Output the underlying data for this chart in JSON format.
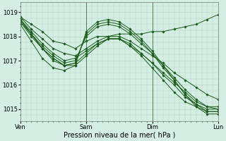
{
  "background_color": "#d4eee4",
  "line_color": "#1a5c1a",
  "grid_color": "#b0d4c0",
  "xlabel": "Pression niveau de la mer( hPa )",
  "ylim": [
    1014.5,
    1019.4
  ],
  "yticks": [
    1015,
    1016,
    1017,
    1018,
    1019
  ],
  "xtick_labels": [
    "Ven",
    "Sam",
    "Dim",
    "Lun"
  ],
  "xtick_positions": [
    0,
    36,
    72,
    108
  ],
  "total_x": 108,
  "series": [
    {
      "points": [
        [
          0,
          1018.8
        ],
        [
          6,
          1018.5
        ],
        [
          12,
          1018.2
        ],
        [
          18,
          1017.8
        ],
        [
          24,
          1017.7
        ],
        [
          30,
          1017.5
        ],
        [
          36,
          1017.8
        ],
        [
          42,
          1018.0
        ],
        [
          48,
          1018.0
        ],
        [
          54,
          1018.1
        ],
        [
          60,
          1018.1
        ],
        [
          66,
          1018.1
        ],
        [
          72,
          1018.2
        ],
        [
          78,
          1018.2
        ],
        [
          84,
          1018.3
        ],
        [
          90,
          1018.4
        ],
        [
          96,
          1018.5
        ],
        [
          102,
          1018.7
        ],
        [
          108,
          1018.9
        ]
      ]
    },
    {
      "points": [
        [
          0,
          1018.8
        ],
        [
          6,
          1018.3
        ],
        [
          12,
          1017.9
        ],
        [
          18,
          1017.5
        ],
        [
          24,
          1017.3
        ],
        [
          30,
          1017.2
        ],
        [
          36,
          1017.5
        ],
        [
          42,
          1017.8
        ],
        [
          48,
          1018.0
        ],
        [
          54,
          1018.0
        ],
        [
          60,
          1017.8
        ],
        [
          66,
          1017.5
        ],
        [
          72,
          1017.2
        ],
        [
          78,
          1016.9
        ],
        [
          84,
          1016.5
        ],
        [
          90,
          1016.2
        ],
        [
          96,
          1015.9
        ],
        [
          102,
          1015.6
        ],
        [
          108,
          1015.4
        ]
      ]
    },
    {
      "points": [
        [
          0,
          1018.7
        ],
        [
          6,
          1018.2
        ],
        [
          12,
          1017.7
        ],
        [
          18,
          1017.3
        ],
        [
          24,
          1017.0
        ],
        [
          30,
          1017.1
        ],
        [
          36,
          1017.4
        ],
        [
          42,
          1017.7
        ],
        [
          48,
          1017.9
        ],
        [
          54,
          1017.9
        ],
        [
          60,
          1017.6
        ],
        [
          66,
          1017.3
        ],
        [
          72,
          1016.9
        ],
        [
          78,
          1016.5
        ],
        [
          84,
          1016.1
        ],
        [
          90,
          1015.7
        ],
        [
          96,
          1015.3
        ],
        [
          102,
          1015.1
        ],
        [
          108,
          1015.0
        ]
      ]
    },
    {
      "points": [
        [
          0,
          1018.7
        ],
        [
          6,
          1018.1
        ],
        [
          12,
          1017.5
        ],
        [
          18,
          1017.1
        ],
        [
          24,
          1016.8
        ],
        [
          30,
          1016.9
        ],
        [
          36,
          1017.3
        ],
        [
          42,
          1017.7
        ],
        [
          48,
          1017.9
        ],
        [
          54,
          1017.9
        ],
        [
          60,
          1017.7
        ],
        [
          66,
          1017.3
        ],
        [
          72,
          1016.9
        ],
        [
          78,
          1016.4
        ],
        [
          84,
          1016.0
        ],
        [
          90,
          1015.5
        ],
        [
          96,
          1015.2
        ],
        [
          102,
          1015.0
        ],
        [
          108,
          1015.0
        ]
      ]
    },
    {
      "points": [
        [
          0,
          1018.7
        ],
        [
          6,
          1018.1
        ],
        [
          12,
          1017.5
        ],
        [
          18,
          1017.0
        ],
        [
          24,
          1016.8
        ],
        [
          30,
          1016.8
        ],
        [
          36,
          1017.2
        ],
        [
          42,
          1017.6
        ],
        [
          48,
          1017.9
        ],
        [
          54,
          1017.9
        ],
        [
          60,
          1017.6
        ],
        [
          66,
          1017.2
        ],
        [
          72,
          1016.7
        ],
        [
          78,
          1016.2
        ],
        [
          84,
          1015.7
        ],
        [
          90,
          1015.3
        ],
        [
          96,
          1015.1
        ],
        [
          102,
          1014.9
        ],
        [
          108,
          1014.9
        ]
      ]
    },
    {
      "points": [
        [
          0,
          1018.6
        ],
        [
          6,
          1018.1
        ],
        [
          12,
          1017.6
        ],
        [
          18,
          1017.2
        ],
        [
          24,
          1016.9
        ],
        [
          30,
          1017.0
        ],
        [
          36,
          1018.0
        ],
        [
          42,
          1018.4
        ],
        [
          48,
          1018.5
        ],
        [
          54,
          1018.4
        ],
        [
          60,
          1018.1
        ],
        [
          66,
          1017.7
        ],
        [
          72,
          1017.3
        ],
        [
          78,
          1016.8
        ],
        [
          84,
          1016.3
        ],
        [
          90,
          1015.8
        ],
        [
          96,
          1015.4
        ],
        [
          102,
          1015.1
        ],
        [
          108,
          1015.1
        ]
      ]
    },
    {
      "points": [
        [
          0,
          1018.6
        ],
        [
          6,
          1018.0
        ],
        [
          12,
          1017.5
        ],
        [
          18,
          1017.1
        ],
        [
          24,
          1016.8
        ],
        [
          30,
          1016.9
        ],
        [
          36,
          1018.1
        ],
        [
          42,
          1018.5
        ],
        [
          48,
          1018.6
        ],
        [
          54,
          1018.5
        ],
        [
          60,
          1018.2
        ],
        [
          66,
          1017.8
        ],
        [
          72,
          1017.3
        ],
        [
          78,
          1016.7
        ],
        [
          84,
          1016.2
        ],
        [
          90,
          1015.6
        ],
        [
          96,
          1015.2
        ],
        [
          102,
          1014.9
        ],
        [
          108,
          1014.9
        ]
      ]
    },
    {
      "points": [
        [
          0,
          1018.5
        ],
        [
          6,
          1017.8
        ],
        [
          12,
          1017.1
        ],
        [
          18,
          1016.7
        ],
        [
          24,
          1016.6
        ],
        [
          30,
          1016.8
        ],
        [
          36,
          1018.2
        ],
        [
          42,
          1018.6
        ],
        [
          48,
          1018.7
        ],
        [
          54,
          1018.6
        ],
        [
          60,
          1018.3
        ],
        [
          66,
          1017.9
        ],
        [
          72,
          1017.4
        ],
        [
          78,
          1016.8
        ],
        [
          84,
          1016.2
        ],
        [
          90,
          1015.6
        ],
        [
          96,
          1015.1
        ],
        [
          102,
          1014.8
        ],
        [
          108,
          1014.8
        ]
      ]
    }
  ],
  "n_grid_x": 12,
  "tick_fontsize": 6,
  "xlabel_fontsize": 7
}
